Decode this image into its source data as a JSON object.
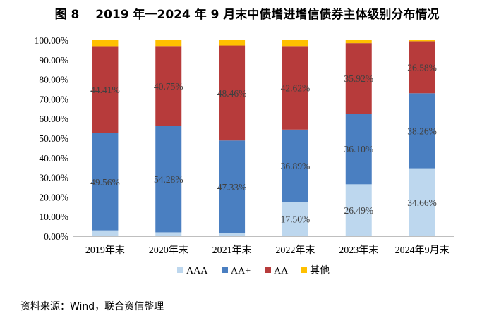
{
  "title": "图 8　 2019 年一2024 年 9 月末中债增进增信债券主体级别分布情况",
  "source": "资料来源：Wind，联合资信整理",
  "chart_data": {
    "type": "bar",
    "stacked": true,
    "categories": [
      "2019年末",
      "2020年末",
      "2021年末",
      "2022年末",
      "2023年末",
      "2024年9月末"
    ],
    "series": [
      {
        "name": "AAA",
        "color": "#BDD7EE",
        "values": [
          3.0,
          2.0,
          1.5,
          17.5,
          26.49,
          34.66
        ]
      },
      {
        "name": "AA+",
        "color": "#4A7FC1",
        "values": [
          49.56,
          54.28,
          47.33,
          36.89,
          36.1,
          38.26
        ]
      },
      {
        "name": "AA",
        "color": "#B73B3B",
        "values": [
          44.41,
          40.75,
          48.46,
          42.62,
          35.92,
          26.58
        ]
      },
      {
        "name": "其他",
        "color": "#FFC000",
        "values": [
          3.03,
          2.97,
          2.71,
          2.99,
          1.49,
          0.5
        ]
      }
    ],
    "data_labels": [
      {
        "series": "AAA",
        "labels": [
          null,
          null,
          null,
          "17.50%",
          "26.49%",
          "34.66%"
        ]
      },
      {
        "series": "AA+",
        "labels": [
          "49.56%",
          "54.28%",
          "47.33%",
          "36.89%",
          "36.10%",
          "38.26%"
        ]
      },
      {
        "series": "AA",
        "labels": [
          "44.41%",
          "40.75%",
          "48.46%",
          "42.62%",
          "35.92%",
          "26.58%"
        ]
      }
    ],
    "yticks": [
      "0.00%",
      "10.00%",
      "20.00%",
      "30.00%",
      "40.00%",
      "50.00%",
      "60.00%",
      "70.00%",
      "80.00%",
      "90.00%",
      "100.00%"
    ],
    "ylim": [
      0,
      100
    ],
    "legend_position": "bottom"
  }
}
